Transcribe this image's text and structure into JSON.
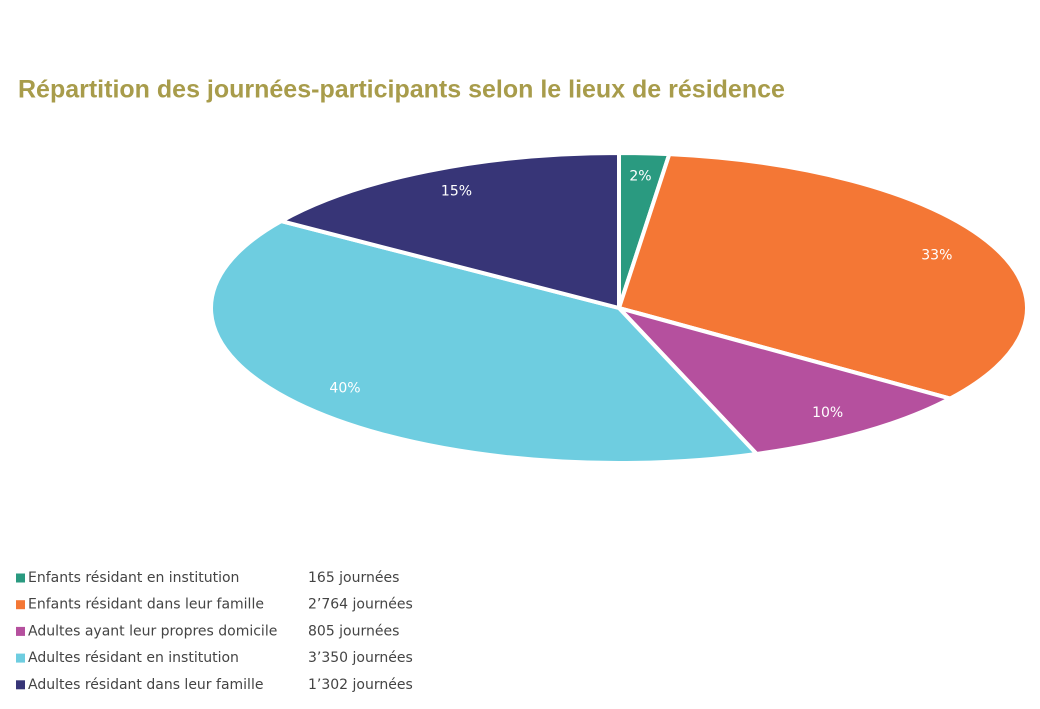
{
  "chart_data": {
    "type": "pie",
    "title": "Répartition des journées-participants selon le lieux de résidence",
    "categories": [
      "Enfants résidant en institution",
      "Enfants résidant dans leur famille",
      "Adultes ayant leur propres domicile",
      "Adultes résidant en institution",
      "Adultes résidant dans leur famille"
    ],
    "values": [
      165,
      2764,
      805,
      3350,
      1302
    ],
    "value_labels": [
      "165 journées",
      "2’764 journées",
      "805 journées",
      "3’350 journées",
      "1’302 journées"
    ],
    "percent_values": [
      2,
      33,
      10,
      40,
      15
    ],
    "percent_labels": [
      "2%",
      "33%",
      "10%",
      "40%",
      "15%"
    ],
    "colors": [
      "#2a9a80",
      "#f47735",
      "#b5509e",
      "#6ecde0",
      "#373577"
    ]
  }
}
